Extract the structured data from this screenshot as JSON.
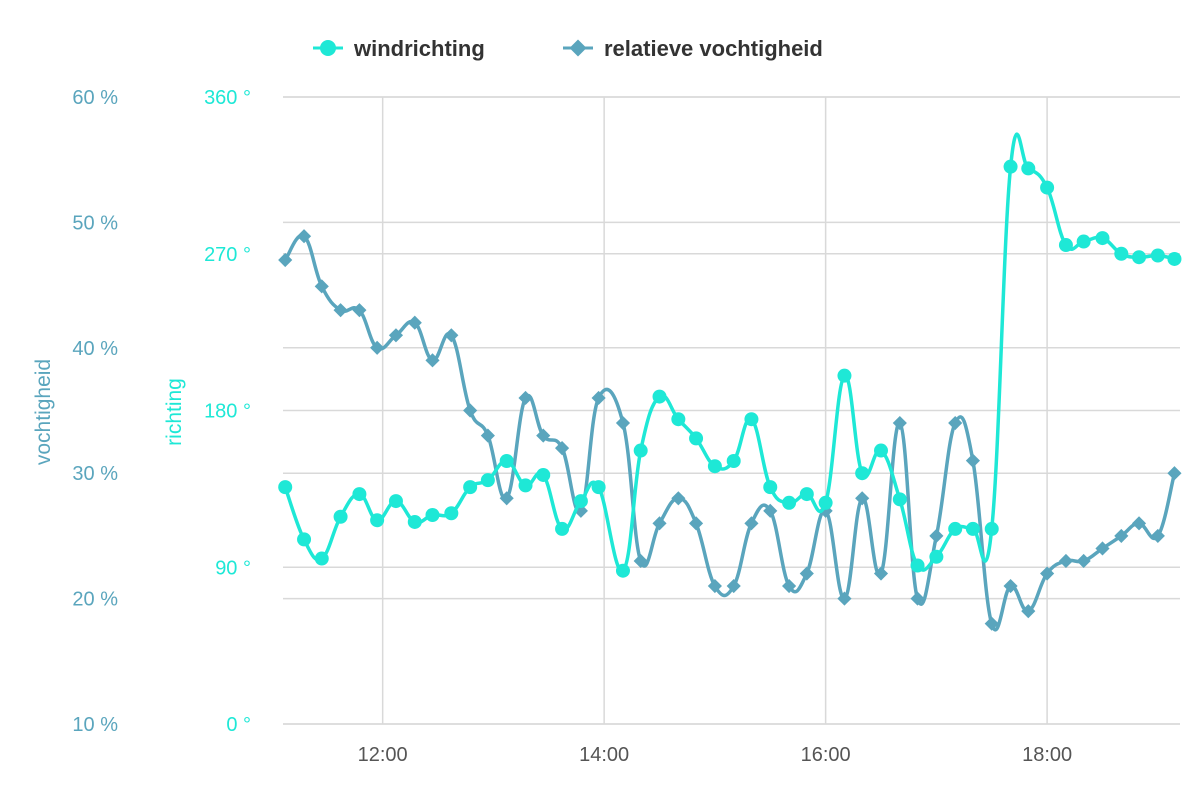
{
  "chart_data": {
    "type": "line",
    "x_unit": "time of day (hours)",
    "xlim": [
      11.1,
      19.2
    ],
    "x_ticks": [
      "12:00",
      "14:00",
      "16:00",
      "18:00"
    ],
    "grid": "on",
    "legend_placement": "top-center",
    "axes": {
      "humidity": {
        "label": "vochtigheid",
        "ylim": [
          10,
          60
        ],
        "tick_labels": [
          "60 %",
          "50 %",
          "40 %",
          "30 %",
          "20 %",
          "10 %"
        ],
        "color": "#5aa5bd"
      },
      "direction": {
        "label": "richting",
        "ylim": [
          0,
          360
        ],
        "tick_labels": [
          "360 °",
          "270 °",
          "180 °",
          "90 °",
          "0 °"
        ],
        "color": "#1ee8d6"
      }
    },
    "series": [
      {
        "name": "windrichting",
        "axis": "direction",
        "color": "#1ee8d6",
        "marker": "circle",
        "x": [
          11.12,
          11.29,
          11.45,
          11.62,
          11.79,
          11.95,
          12.12,
          12.29,
          12.45,
          12.62,
          12.79,
          12.95,
          13.12,
          13.29,
          13.45,
          13.62,
          13.79,
          13.95,
          14.17,
          14.33,
          14.5,
          14.67,
          14.83,
          15.0,
          15.17,
          15.33,
          15.5,
          15.67,
          15.83,
          16.0,
          16.17,
          16.33,
          16.5,
          16.67,
          16.83,
          17.0,
          17.17,
          17.33,
          17.5,
          17.67,
          17.83,
          18.0,
          18.17,
          18.33,
          18.5,
          18.67,
          18.83,
          19.0,
          19.15
        ],
        "values": [
          136,
          106,
          95,
          119,
          132,
          117,
          128,
          116,
          120,
          121,
          136,
          140,
          151,
          137,
          143,
          112,
          128,
          136,
          88,
          157,
          188,
          175,
          164,
          148,
          151,
          175,
          136,
          127,
          132,
          127,
          200,
          144,
          157,
          129,
          91,
          96,
          112,
          112,
          112,
          320,
          319,
          308,
          275,
          277,
          279,
          270,
          268,
          269,
          267
        ]
      },
      {
        "name": "relatieve vochtigheid",
        "axis": "humidity",
        "color": "#5aa5bd",
        "marker": "diamond",
        "x": [
          11.12,
          11.29,
          11.45,
          11.62,
          11.79,
          11.95,
          12.12,
          12.29,
          12.45,
          12.62,
          12.79,
          12.95,
          13.12,
          13.29,
          13.45,
          13.62,
          13.79,
          13.95,
          14.17,
          14.33,
          14.5,
          14.67,
          14.83,
          15.0,
          15.17,
          15.33,
          15.5,
          15.67,
          15.83,
          16.0,
          16.17,
          16.33,
          16.5,
          16.67,
          16.83,
          17.0,
          17.17,
          17.33,
          17.5,
          17.67,
          17.83,
          18.0,
          18.17,
          18.33,
          18.5,
          18.67,
          18.83,
          19.0,
          19.15
        ],
        "values": [
          47.0,
          48.9,
          44.9,
          43.0,
          43.0,
          40.0,
          41.0,
          42.0,
          39.0,
          41.0,
          35.0,
          33.0,
          28.0,
          36.0,
          33.0,
          32.0,
          27.0,
          36.0,
          34.0,
          23.0,
          26.0,
          28.0,
          26.0,
          21.0,
          21.0,
          26.0,
          27.0,
          21.0,
          22.0,
          27.0,
          20.0,
          28.0,
          22.0,
          34.0,
          20.0,
          25.0,
          34.0,
          31.0,
          18.0,
          21.0,
          19.0,
          22.0,
          23.0,
          23.0,
          24.0,
          25.0,
          26.0,
          25.0,
          30.0
        ]
      }
    ]
  }
}
